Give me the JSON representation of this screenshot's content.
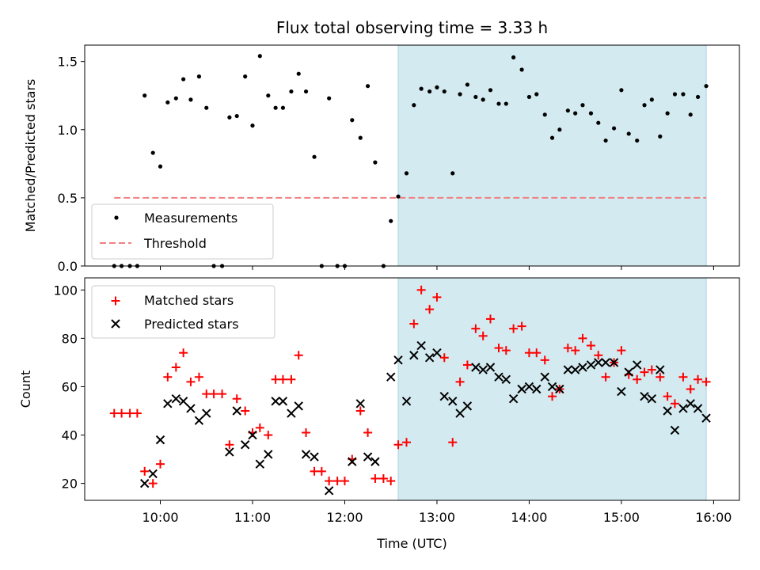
{
  "chart_data": [
    {
      "type": "scatter",
      "title": "Flux total observing time = 3.33 h",
      "xlabel": "",
      "ylabel": "Matched/Predicted stars",
      "ylim": [
        0,
        1.62
      ],
      "yticks": [
        "0.0",
        "0.5",
        "1.0",
        "1.5"
      ],
      "ytick_values": [
        0,
        0.5,
        1.0,
        1.5
      ],
      "xlim_hours": [
        9.18,
        16.28
      ],
      "shaded_region_hours": [
        12.58,
        15.92
      ],
      "shaded_color": "#d3eaf0",
      "legend": {
        "placement": "lower-left",
        "entries": [
          "Measurements",
          "Threshold"
        ]
      },
      "series": [
        {
          "name": "Measurements",
          "marker": "dot",
          "color": "#000000",
          "x": [
            9.5,
            9.58,
            9.67,
            9.75,
            9.83,
            9.92,
            10.0,
            10.08,
            10.17,
            10.25,
            10.33,
            10.42,
            10.5,
            10.58,
            10.67,
            10.75,
            10.83,
            10.92,
            11.0,
            11.08,
            11.17,
            11.25,
            11.33,
            11.42,
            11.5,
            11.58,
            11.67,
            11.75,
            11.83,
            11.92,
            12.0,
            12.08,
            12.17,
            12.25,
            12.33,
            12.42,
            12.5,
            12.58,
            12.67,
            12.75,
            12.83,
            12.92,
            13.0,
            13.08,
            13.17,
            13.25,
            13.33,
            13.42,
            13.5,
            13.58,
            13.67,
            13.75,
            13.83,
            13.92,
            14.0,
            14.08,
            14.17,
            14.25,
            14.33,
            14.42,
            14.5,
            14.58,
            14.67,
            14.75,
            14.83,
            14.92,
            15.0,
            15.08,
            15.17,
            15.25,
            15.33,
            15.42,
            15.5,
            15.58,
            15.67,
            15.75,
            15.83,
            15.92
          ],
          "y": [
            0.0,
            0.0,
            0.0,
            0.0,
            1.25,
            0.83,
            0.73,
            1.2,
            1.23,
            1.37,
            1.22,
            1.39,
            1.16,
            0.0,
            0.0,
            1.09,
            1.1,
            1.39,
            1.03,
            1.54,
            1.25,
            1.16,
            1.16,
            1.28,
            1.41,
            1.28,
            0.8,
            0.0,
            1.23,
            0.0,
            0.0,
            1.07,
            0.94,
            1.32,
            0.76,
            0.0,
            0.33,
            0.51,
            0.68,
            1.18,
            1.3,
            1.28,
            1.31,
            1.28,
            0.68,
            1.26,
            1.33,
            1.24,
            1.22,
            1.29,
            1.19,
            1.19,
            1.53,
            1.44,
            1.24,
            1.26,
            1.11,
            0.94,
            1.0,
            1.14,
            1.12,
            1.18,
            1.12,
            1.05,
            0.92,
            1.01,
            1.29,
            0.97,
            0.92,
            1.18,
            1.22,
            0.95,
            1.12,
            1.26,
            1.26,
            1.11,
            1.24,
            1.32
          ]
        },
        {
          "name": "Threshold",
          "marker": "dashed-line",
          "color": "#f08080",
          "x": [
            9.5,
            15.92
          ],
          "y": [
            0.5,
            0.5
          ]
        }
      ]
    },
    {
      "type": "scatter",
      "xlabel": "Time (UTC)",
      "ylabel": "Count",
      "ylim": [
        13,
        105
      ],
      "yticks": [
        "20",
        "40",
        "60",
        "80",
        "100"
      ],
      "ytick_values": [
        20,
        40,
        60,
        80,
        100
      ],
      "xticks": [
        "10:00",
        "11:00",
        "12:00",
        "13:00",
        "14:00",
        "15:00",
        "16:00"
      ],
      "xtick_hours": [
        10,
        11,
        12,
        13,
        14,
        15,
        16
      ],
      "xlim_hours": [
        9.18,
        16.28
      ],
      "shaded_region_hours": [
        12.58,
        15.92
      ],
      "shaded_color": "#d3eaf0",
      "legend": {
        "placement": "upper-left",
        "entries": [
          "Matched stars",
          "Predicted stars"
        ]
      },
      "series": [
        {
          "name": "Matched stars",
          "marker": "plus",
          "color": "#ff0000",
          "x": [
            9.5,
            9.58,
            9.67,
            9.75,
            9.83,
            9.92,
            10.0,
            10.08,
            10.17,
            10.25,
            10.33,
            10.42,
            10.5,
            10.58,
            10.67,
            10.75,
            10.83,
            10.92,
            11.0,
            11.08,
            11.17,
            11.25,
            11.33,
            11.42,
            11.5,
            11.58,
            11.67,
            11.75,
            11.83,
            11.92,
            12.0,
            12.08,
            12.17,
            12.25,
            12.33,
            12.42,
            12.5,
            12.58,
            12.67,
            12.75,
            12.83,
            12.92,
            13.0,
            13.08,
            13.17,
            13.25,
            13.33,
            13.42,
            13.5,
            13.58,
            13.67,
            13.75,
            13.83,
            13.92,
            14.0,
            14.08,
            14.17,
            14.25,
            14.33,
            14.42,
            14.5,
            14.58,
            14.67,
            14.75,
            14.83,
            14.92,
            15.0,
            15.08,
            15.17,
            15.25,
            15.33,
            15.42,
            15.5,
            15.58,
            15.67,
            15.75,
            15.83,
            15.92
          ],
          "y": [
            49,
            49,
            49,
            49,
            25,
            20,
            28,
            64,
            68,
            74,
            62,
            64,
            57,
            57,
            57,
            36,
            55,
            50,
            41,
            43,
            40,
            63,
            63,
            63,
            73,
            41,
            25,
            25,
            21,
            21,
            21,
            30,
            50,
            41,
            22,
            22,
            21,
            36,
            37,
            86,
            100,
            92,
            97,
            72,
            37,
            62,
            69,
            84,
            81,
            88,
            76,
            75,
            84,
            85,
            74,
            74,
            71,
            56,
            59,
            76,
            75,
            80,
            77,
            73,
            64,
            70,
            75,
            65,
            63,
            66,
            67,
            64,
            56,
            53,
            64,
            59,
            63,
            62
          ]
        },
        {
          "name": "Predicted stars",
          "marker": "x",
          "color": "#000000",
          "x": [
            9.83,
            9.92,
            10.0,
            10.08,
            10.17,
            10.25,
            10.33,
            10.42,
            10.5,
            10.75,
            10.83,
            10.92,
            11.0,
            11.08,
            11.17,
            11.25,
            11.33,
            11.42,
            11.5,
            11.58,
            11.67,
            11.83,
            12.08,
            12.17,
            12.25,
            12.33,
            12.5,
            12.58,
            12.67,
            12.75,
            12.83,
            12.92,
            13.0,
            13.08,
            13.17,
            13.25,
            13.33,
            13.42,
            13.5,
            13.58,
            13.67,
            13.75,
            13.83,
            13.92,
            14.0,
            14.08,
            14.17,
            14.25,
            14.33,
            14.42,
            14.5,
            14.58,
            14.67,
            14.75,
            14.83,
            14.92,
            15.0,
            15.08,
            15.17,
            15.25,
            15.33,
            15.42,
            15.5,
            15.58,
            15.67,
            15.75,
            15.83,
            15.92
          ],
          "y": [
            20,
            24,
            38,
            53,
            55,
            54,
            51,
            46,
            49,
            33,
            50,
            36,
            40,
            28,
            32,
            54,
            54,
            49,
            52,
            32,
            31,
            17,
            29,
            53,
            31,
            29,
            64,
            71,
            54,
            73,
            77,
            72,
            74,
            56,
            54,
            49,
            52,
            68,
            67,
            68,
            64,
            63,
            55,
            59,
            60,
            59,
            64,
            60,
            59,
            67,
            67,
            68,
            69,
            70,
            70,
            70,
            58,
            66,
            69,
            56,
            55,
            67,
            50,
            42,
            51,
            53,
            51,
            47
          ]
        }
      ]
    }
  ]
}
